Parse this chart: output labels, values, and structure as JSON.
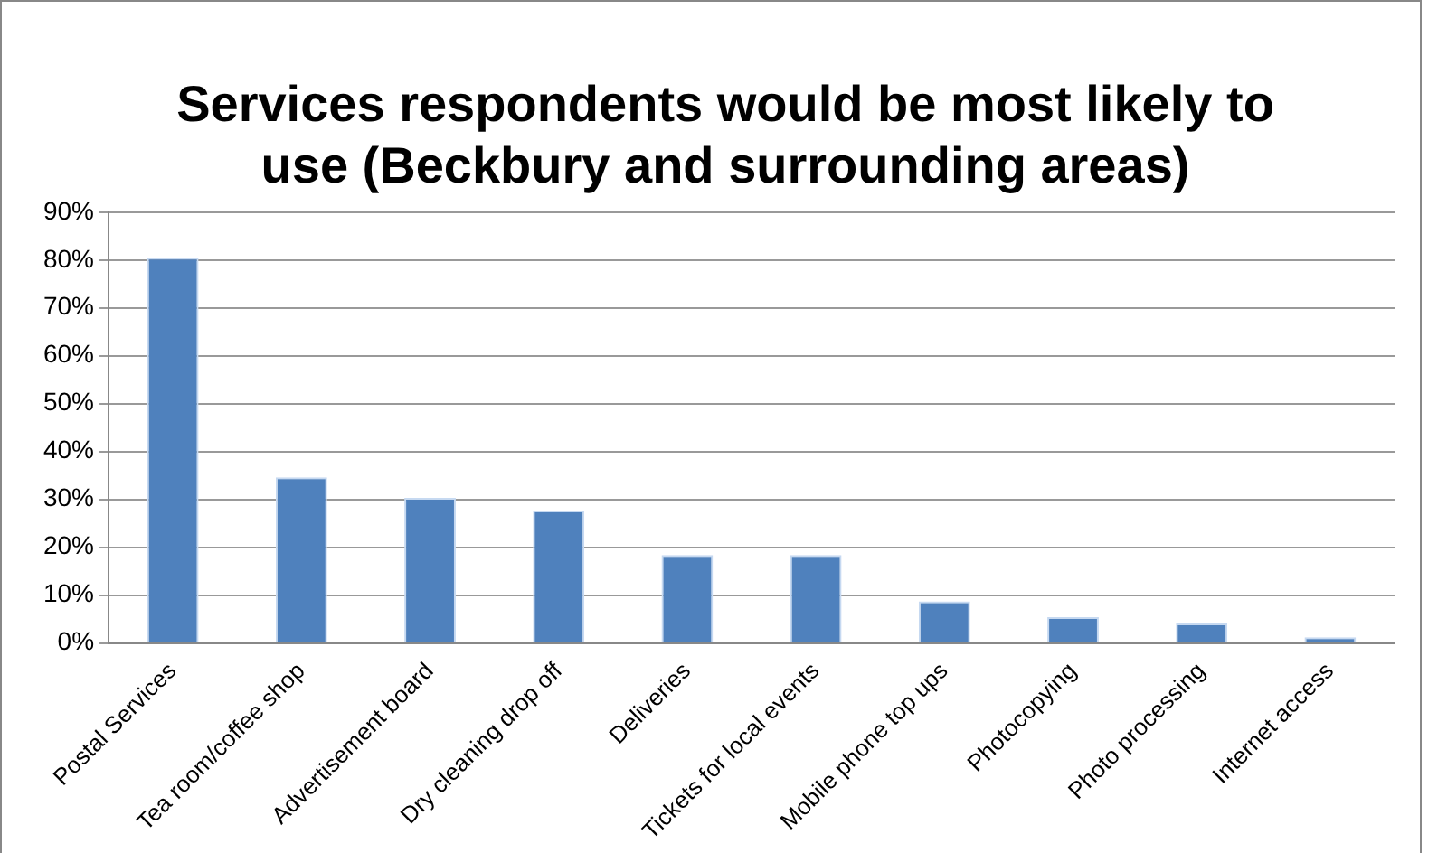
{
  "chart_data": {
    "type": "bar",
    "title": "Services respondents would be most likely to use (Beckbury and surrounding areas)",
    "categories": [
      "Postal Services",
      "Tea room/coffee shop",
      "Advertisement board",
      "Dry cleaning drop off",
      "Deliveries",
      "Tickets for local events",
      "Mobile phone top ups",
      "Photocopying",
      "Photo processing",
      "Internet access"
    ],
    "values": [
      80.5,
      34.6,
      30.3,
      27.7,
      18.4,
      18.4,
      8.7,
      5.4,
      4.1,
      1.2
    ],
    "color": "#4f81bd",
    "ylim": [
      0,
      90
    ],
    "yticks": [
      {
        "value": 0,
        "label": "0%"
      },
      {
        "value": 10,
        "label": "10%"
      },
      {
        "value": 20,
        "label": "20%"
      },
      {
        "value": 30,
        "label": "30%"
      },
      {
        "value": 40,
        "label": "40%"
      },
      {
        "value": 50,
        "label": "50%"
      },
      {
        "value": 60,
        "label": "60%"
      },
      {
        "value": 70,
        "label": "70%"
      },
      {
        "value": 80,
        "label": "80%"
      },
      {
        "value": 90,
        "label": "90%"
      }
    ],
    "grid": "y",
    "legend": false
  }
}
